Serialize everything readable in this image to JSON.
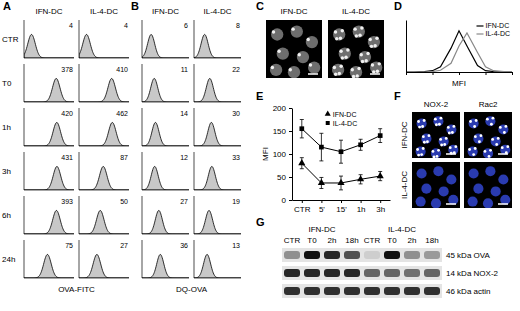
{
  "chart_data": [
    {
      "panel": "A",
      "type": "histogram_grid",
      "rows": [
        "CTR",
        "T0",
        "1h",
        "3h",
        "6h",
        "24h"
      ],
      "xlabel": "OVA-FITC",
      "log": "x",
      "xlim": [
        1,
        10000
      ],
      "tick_labels": false,
      "data_labels": true,
      "series": [
        {
          "name": "IFN-DC",
          "color": "#000000",
          "values": [
            4,
            378,
            420,
            431,
            393,
            75
          ]
        },
        {
          "name": "IL-4-DC",
          "color": "#000000",
          "values": [
            4,
            410,
            462,
            87,
            50,
            27
          ]
        }
      ]
    },
    {
      "panel": "B",
      "type": "histogram_grid",
      "xlabel": "DQ-OVA",
      "log": "x",
      "xlim": [
        1,
        10000
      ],
      "tick_labels": false,
      "data_labels": true,
      "series": [
        {
          "name": "IFN-DC",
          "color": "#000000",
          "values": [
            6,
            11,
            14,
            12,
            27,
            36
          ]
        },
        {
          "name": "IL-4-DC",
          "color": "#000000",
          "values": [
            8,
            22,
            30,
            33,
            19,
            13
          ]
        }
      ]
    },
    {
      "panel": "C",
      "type": "image",
      "columns": [
        "IFN-DC",
        "IL-4-DC"
      ]
    },
    {
      "panel": "D",
      "type": "line",
      "xlabel": "MFI",
      "log": "x",
      "xlim": [
        1,
        10000
      ],
      "xticks": [
        1,
        10,
        100,
        1000,
        10000
      ],
      "ylim": [
        0,
        120
      ],
      "tick_labels": false,
      "legend": "upper right",
      "x": [
        1,
        2,
        5,
        10,
        20,
        50,
        100,
        200,
        500,
        1000,
        2000,
        5000,
        10000
      ],
      "series": [
        {
          "name": "IFN-DC",
          "color": "#000000",
          "values": [
            0,
            0,
            1,
            3,
            12,
            55,
            95,
            60,
            15,
            3,
            1,
            0,
            0
          ]
        },
        {
          "name": "IL-4-DC",
          "color": "#888888",
          "values": [
            0,
            0,
            0,
            1,
            4,
            20,
            60,
            90,
            45,
            12,
            3,
            1,
            0
          ]
        }
      ]
    },
    {
      "panel": "E",
      "type": "line",
      "ylabel": "MFI",
      "categories": [
        "CTR",
        "5'",
        "15'",
        "1h",
        "3h"
      ],
      "ylim": [
        0,
        200
      ],
      "yticks": [
        0,
        50,
        100,
        150,
        200
      ],
      "legend": "upper center",
      "series": [
        {
          "name": "IFN-DC",
          "color": "#000000",
          "marker": "triangle",
          "values": [
            80,
            37,
            37,
            45,
            52
          ],
          "errors": [
            12,
            12,
            15,
            10,
            10
          ]
        },
        {
          "name": "IL-4-DC",
          "color": "#000000",
          "marker": "square",
          "values": [
            155,
            115,
            105,
            120,
            140
          ],
          "errors": [
            20,
            30,
            25,
            12,
            15
          ]
        }
      ]
    },
    {
      "panel": "F",
      "type": "image",
      "columns": [
        "NOX-2",
        "Rac2"
      ],
      "rows": [
        "IFN-DC",
        "IL-4-DC"
      ]
    },
    {
      "panel": "G",
      "type": "blot",
      "groups": [
        "IFN-DC",
        "IL-4-DC"
      ],
      "categories": [
        "CTR",
        "T0",
        "2h",
        "18h",
        "CTR",
        "T0",
        "2h",
        "18h"
      ],
      "bands": [
        {
          "name": "45 kDa OVA",
          "values": [
            0.4,
            1,
            0.9,
            0.7,
            0.1,
            1,
            0.4,
            0.35
          ]
        },
        {
          "name": "14 kDa NOX-2",
          "values": [
            0.9,
            0.9,
            0.9,
            0.9,
            0.6,
            0.6,
            0.55,
            0.6
          ]
        },
        {
          "name": "46 kDa actin",
          "values": [
            0.85,
            0.85,
            0.85,
            0.85,
            0.85,
            0.85,
            0.85,
            0.85
          ]
        }
      ]
    }
  ]
}
